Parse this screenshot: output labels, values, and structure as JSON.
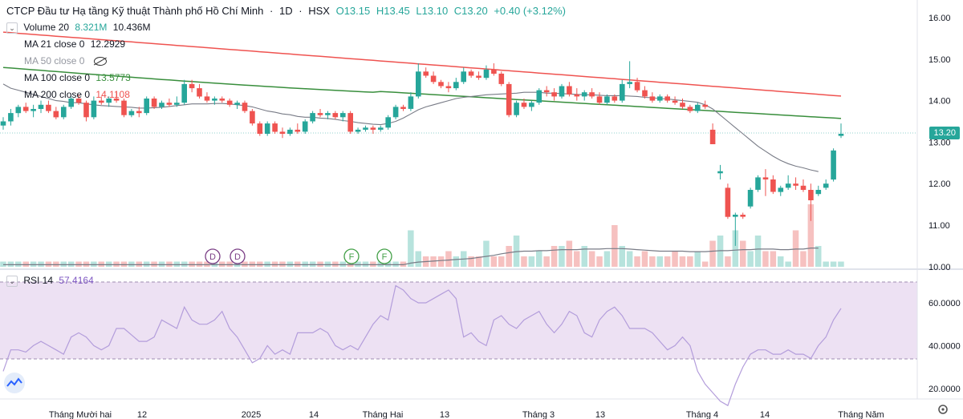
{
  "header": {
    "symbol_name": "CTCP Đầu tư Hạ tầng Kỹ thuật Thành phố Hồ Chí Minh",
    "interval": "1D",
    "exchange": "HSX",
    "open": "O13.15",
    "high": "H13.45",
    "low": "L13.10",
    "close": "C13.20",
    "change": "+0.40 (+3.12%)"
  },
  "legend": {
    "volume_label": "Volume 20",
    "volume_value": "8.321M",
    "volume_ma_value": "10.436M",
    "ma21_label": "MA 21 close 0",
    "ma21_value": "12.2929",
    "ma50_label": "MA 50 close 0",
    "ma100_label": "MA 100 close 0",
    "ma100_value": "13.5773",
    "ma200_label": "MA 200 close 0",
    "ma200_value": "14.1108",
    "rsi_label": "RSI 14",
    "rsi_value": "57.4164"
  },
  "price_axis": [
    "16.00",
    "15.00",
    "14.00",
    "13.00",
    "12.00",
    "11.00",
    "10.00"
  ],
  "price_last": "13.20",
  "rsi_axis": [
    "60.0000",
    "40.0000",
    "20.0000"
  ],
  "time_axis": [
    "Tháng Mười hai",
    "12",
    "2025",
    "14",
    "Tháng Hai",
    "13",
    "Tháng 3",
    "13",
    "Tháng 4",
    "14",
    "Tháng Năm"
  ],
  "event_markers": [
    "D",
    "D",
    "F",
    "F"
  ],
  "colors": {
    "up": "#26a69a",
    "down": "#ef5350",
    "ma21": "#787b86",
    "ma100": "#388e3c",
    "ma200": "#ef5350",
    "rsi": "#b39ddb"
  },
  "chart_data": {
    "type": "candlestick",
    "price_range": [
      10.0,
      16.0
    ],
    "rsi_range": [
      10,
      70
    ],
    "candles": [
      {
        "o": 13.4,
        "h": 13.6,
        "l": 13.3,
        "c": 13.5
      },
      {
        "o": 13.5,
        "h": 13.8,
        "l": 13.4,
        "c": 13.7
      },
      {
        "o": 13.7,
        "h": 13.9,
        "l": 13.6,
        "c": 13.85
      },
      {
        "o": 13.85,
        "h": 13.95,
        "l": 13.7,
        "c": 13.75
      },
      {
        "o": 13.75,
        "h": 13.9,
        "l": 13.6,
        "c": 13.8
      },
      {
        "o": 13.8,
        "h": 14.0,
        "l": 13.7,
        "c": 13.9
      },
      {
        "o": 13.9,
        "h": 14.0,
        "l": 13.7,
        "c": 13.75
      },
      {
        "o": 13.75,
        "h": 13.85,
        "l": 13.55,
        "c": 13.6
      },
      {
        "o": 13.6,
        "h": 13.9,
        "l": 13.55,
        "c": 13.85
      },
      {
        "o": 13.85,
        "h": 14.1,
        "l": 13.8,
        "c": 14.05
      },
      {
        "o": 14.05,
        "h": 14.15,
        "l": 13.9,
        "c": 13.95
      },
      {
        "o": 13.95,
        "h": 14.0,
        "l": 13.5,
        "c": 13.6
      },
      {
        "o": 13.6,
        "h": 14.1,
        "l": 13.55,
        "c": 14.0
      },
      {
        "o": 14.0,
        "h": 14.1,
        "l": 13.9,
        "c": 13.95
      },
      {
        "o": 13.95,
        "h": 14.1,
        "l": 13.85,
        "c": 14.05
      },
      {
        "o": 14.05,
        "h": 14.2,
        "l": 13.95,
        "c": 14.0
      },
      {
        "o": 14.0,
        "h": 14.05,
        "l": 13.6,
        "c": 13.65
      },
      {
        "o": 13.65,
        "h": 13.8,
        "l": 13.6,
        "c": 13.75
      },
      {
        "o": 13.75,
        "h": 13.85,
        "l": 13.6,
        "c": 13.7
      },
      {
        "o": 13.7,
        "h": 14.1,
        "l": 13.65,
        "c": 14.05
      },
      {
        "o": 14.05,
        "h": 14.1,
        "l": 13.8,
        "c": 13.85
      },
      {
        "o": 13.85,
        "h": 14.0,
        "l": 13.8,
        "c": 13.95
      },
      {
        "o": 13.95,
        "h": 14.05,
        "l": 13.85,
        "c": 13.9
      },
      {
        "o": 13.9,
        "h": 14.1,
        "l": 13.85,
        "c": 13.95
      },
      {
        "o": 13.95,
        "h": 14.5,
        "l": 13.9,
        "c": 14.4
      },
      {
        "o": 14.4,
        "h": 14.5,
        "l": 14.2,
        "c": 14.3
      },
      {
        "o": 14.3,
        "h": 14.4,
        "l": 14.05,
        "c": 14.1
      },
      {
        "o": 14.1,
        "h": 14.2,
        "l": 13.95,
        "c": 14.0
      },
      {
        "o": 14.0,
        "h": 14.1,
        "l": 13.9,
        "c": 14.05
      },
      {
        "o": 14.05,
        "h": 14.1,
        "l": 13.95,
        "c": 14.0
      },
      {
        "o": 14.0,
        "h": 14.05,
        "l": 13.85,
        "c": 13.9
      },
      {
        "o": 13.9,
        "h": 14.0,
        "l": 13.8,
        "c": 13.95
      },
      {
        "o": 13.95,
        "h": 14.0,
        "l": 13.7,
        "c": 13.75
      },
      {
        "o": 13.75,
        "h": 13.8,
        "l": 13.4,
        "c": 13.45
      },
      {
        "o": 13.45,
        "h": 13.5,
        "l": 13.15,
        "c": 13.2
      },
      {
        "o": 13.2,
        "h": 13.5,
        "l": 13.15,
        "c": 13.45
      },
      {
        "o": 13.45,
        "h": 13.5,
        "l": 13.2,
        "c": 13.25
      },
      {
        "o": 13.25,
        "h": 13.35,
        "l": 13.1,
        "c": 13.2
      },
      {
        "o": 13.2,
        "h": 13.35,
        "l": 13.15,
        "c": 13.3
      },
      {
        "o": 13.3,
        "h": 13.45,
        "l": 13.2,
        "c": 13.25
      },
      {
        "o": 13.25,
        "h": 13.55,
        "l": 13.2,
        "c": 13.5
      },
      {
        "o": 13.5,
        "h": 13.75,
        "l": 13.45,
        "c": 13.7
      },
      {
        "o": 13.7,
        "h": 13.8,
        "l": 13.6,
        "c": 13.65
      },
      {
        "o": 13.65,
        "h": 13.75,
        "l": 13.55,
        "c": 13.7
      },
      {
        "o": 13.7,
        "h": 13.75,
        "l": 13.55,
        "c": 13.6
      },
      {
        "o": 13.6,
        "h": 13.75,
        "l": 13.5,
        "c": 13.7
      },
      {
        "o": 13.7,
        "h": 13.75,
        "l": 13.2,
        "c": 13.25
      },
      {
        "o": 13.25,
        "h": 13.35,
        "l": 13.2,
        "c": 13.3
      },
      {
        "o": 13.3,
        "h": 13.4,
        "l": 13.25,
        "c": 13.35
      },
      {
        "o": 13.35,
        "h": 13.4,
        "l": 13.2,
        "c": 13.3
      },
      {
        "o": 13.3,
        "h": 13.4,
        "l": 13.25,
        "c": 13.35
      },
      {
        "o": 13.35,
        "h": 13.65,
        "l": 13.3,
        "c": 13.6
      },
      {
        "o": 13.6,
        "h": 13.9,
        "l": 13.55,
        "c": 13.85
      },
      {
        "o": 13.85,
        "h": 13.9,
        "l": 13.75,
        "c": 13.8
      },
      {
        "o": 13.8,
        "h": 14.2,
        "l": 13.75,
        "c": 14.1
      },
      {
        "o": 14.1,
        "h": 14.9,
        "l": 14.05,
        "c": 14.7
      },
      {
        "o": 14.7,
        "h": 14.8,
        "l": 14.55,
        "c": 14.6
      },
      {
        "o": 14.6,
        "h": 14.7,
        "l": 14.4,
        "c": 14.45
      },
      {
        "o": 14.45,
        "h": 14.5,
        "l": 14.3,
        "c": 14.35
      },
      {
        "o": 14.35,
        "h": 14.45,
        "l": 14.2,
        "c": 14.3
      },
      {
        "o": 14.3,
        "h": 14.55,
        "l": 14.25,
        "c": 14.45
      },
      {
        "o": 14.45,
        "h": 14.8,
        "l": 14.4,
        "c": 14.7
      },
      {
        "o": 14.7,
        "h": 14.75,
        "l": 14.55,
        "c": 14.6
      },
      {
        "o": 14.6,
        "h": 14.7,
        "l": 14.5,
        "c": 14.55
      },
      {
        "o": 14.55,
        "h": 14.85,
        "l": 14.5,
        "c": 14.75
      },
      {
        "o": 14.75,
        "h": 14.9,
        "l": 14.6,
        "c": 14.65
      },
      {
        "o": 14.65,
        "h": 14.7,
        "l": 14.35,
        "c": 14.4
      },
      {
        "o": 14.4,
        "h": 14.45,
        "l": 13.6,
        "c": 13.65
      },
      {
        "o": 13.65,
        "h": 14.0,
        "l": 13.6,
        "c": 13.95
      },
      {
        "o": 13.95,
        "h": 14.05,
        "l": 13.8,
        "c": 13.85
      },
      {
        "o": 13.85,
        "h": 14.0,
        "l": 13.75,
        "c": 13.95
      },
      {
        "o": 13.95,
        "h": 14.3,
        "l": 13.9,
        "c": 14.25
      },
      {
        "o": 14.25,
        "h": 14.35,
        "l": 14.1,
        "c": 14.2
      },
      {
        "o": 14.2,
        "h": 14.3,
        "l": 14.0,
        "c": 14.1
      },
      {
        "o": 14.1,
        "h": 14.4,
        "l": 14.05,
        "c": 14.35
      },
      {
        "o": 14.35,
        "h": 14.45,
        "l": 14.1,
        "c": 14.15
      },
      {
        "o": 14.15,
        "h": 14.3,
        "l": 14.0,
        "c": 14.1
      },
      {
        "o": 14.1,
        "h": 14.25,
        "l": 14.0,
        "c": 14.2
      },
      {
        "o": 14.2,
        "h": 14.3,
        "l": 14.05,
        "c": 14.1
      },
      {
        "o": 14.1,
        "h": 14.2,
        "l": 13.9,
        "c": 13.95
      },
      {
        "o": 13.95,
        "h": 14.15,
        "l": 13.9,
        "c": 14.1
      },
      {
        "o": 14.1,
        "h": 14.15,
        "l": 13.95,
        "c": 14.0
      },
      {
        "o": 14.0,
        "h": 14.5,
        "l": 13.95,
        "c": 14.4
      },
      {
        "o": 14.4,
        "h": 14.95,
        "l": 14.3,
        "c": 14.45
      },
      {
        "o": 14.45,
        "h": 14.55,
        "l": 14.2,
        "c": 14.25
      },
      {
        "o": 14.25,
        "h": 14.35,
        "l": 14.05,
        "c": 14.1
      },
      {
        "o": 14.1,
        "h": 14.2,
        "l": 13.95,
        "c": 14.0
      },
      {
        "o": 14.0,
        "h": 14.15,
        "l": 13.95,
        "c": 14.1
      },
      {
        "o": 14.1,
        "h": 14.15,
        "l": 13.95,
        "c": 14.0
      },
      {
        "o": 14.0,
        "h": 14.1,
        "l": 13.9,
        "c": 13.95
      },
      {
        "o": 13.95,
        "h": 14.05,
        "l": 13.8,
        "c": 13.85
      },
      {
        "o": 13.85,
        "h": 13.9,
        "l": 13.7,
        "c": 13.75
      },
      {
        "o": 13.75,
        "h": 13.95,
        "l": 13.7,
        "c": 13.9
      },
      {
        "o": 13.9,
        "h": 14.0,
        "l": 13.8,
        "c": 13.85
      },
      {
        "o": 13.3,
        "h": 13.45,
        "l": 12.95,
        "c": 12.95
      },
      {
        "o": 12.25,
        "h": 12.45,
        "l": 12.1,
        "c": 12.3
      },
      {
        "o": 11.9,
        "h": 12.0,
        "l": 11.15,
        "c": 11.2
      },
      {
        "o": 11.2,
        "h": 11.3,
        "l": 10.5,
        "c": 11.25
      },
      {
        "o": 11.25,
        "h": 11.3,
        "l": 11.15,
        "c": 11.2
      },
      {
        "o": 11.45,
        "h": 11.9,
        "l": 11.4,
        "c": 11.85
      },
      {
        "o": 11.85,
        "h": 12.2,
        "l": 11.8,
        "c": 12.15
      },
      {
        "o": 12.15,
        "h": 12.35,
        "l": 11.7,
        "c": 12.1
      },
      {
        "o": 12.1,
        "h": 12.2,
        "l": 11.75,
        "c": 11.8
      },
      {
        "o": 11.8,
        "h": 11.95,
        "l": 11.7,
        "c": 11.9
      },
      {
        "o": 11.9,
        "h": 12.2,
        "l": 11.85,
        "c": 12.0
      },
      {
        "o": 12.0,
        "h": 12.15,
        "l": 11.85,
        "c": 11.95
      },
      {
        "o": 11.95,
        "h": 12.1,
        "l": 11.8,
        "c": 11.85
      },
      {
        "o": 11.85,
        "h": 12.0,
        "l": 11.1,
        "c": 11.6
      },
      {
        "o": 11.75,
        "h": 11.95,
        "l": 11.7,
        "c": 11.85
      },
      {
        "o": 11.9,
        "h": 12.1,
        "l": 11.85,
        "c": 12.0
      },
      {
        "o": 12.1,
        "h": 12.85,
        "l": 12.05,
        "c": 12.8
      },
      {
        "o": 13.15,
        "h": 13.45,
        "l": 13.1,
        "c": 13.2
      }
    ],
    "volume": [
      1,
      1,
      1,
      1,
      1,
      1,
      1,
      1,
      1,
      1,
      1,
      1,
      1,
      1,
      1,
      1,
      1,
      1,
      1,
      1,
      1,
      1,
      1,
      1,
      1,
      1,
      1,
      1,
      1,
      1,
      1,
      1,
      1,
      1,
      1,
      1,
      1,
      1,
      1,
      1,
      1,
      1,
      1,
      1,
      1,
      1,
      1,
      1,
      1,
      1,
      1,
      1,
      1,
      1,
      7,
      3,
      2,
      2,
      2,
      3,
      2,
      3,
      2,
      2,
      5,
      2,
      2,
      4,
      6,
      2,
      2,
      3,
      2,
      4,
      4,
      5,
      3,
      4,
      3,
      2,
      3,
      8,
      4,
      3,
      2,
      3,
      2,
      2,
      2,
      3,
      2,
      2,
      3,
      1,
      5,
      6,
      2,
      7,
      5,
      3,
      6,
      3,
      3,
      2,
      1,
      7,
      3,
      12,
      4
    ],
    "volume_ma": [
      0.4,
      0.4,
      0.4,
      0.4,
      0.4,
      0.4,
      0.4,
      0.4,
      0.4,
      0.4,
      0.4,
      0.4,
      0.4,
      0.4,
      0.4,
      0.4,
      0.4,
      0.4,
      0.4,
      0.4,
      0.4,
      0.4,
      0.4,
      0.4,
      0.4,
      0.4,
      0.4,
      0.4,
      0.4,
      0.4,
      0.4,
      0.4,
      0.4,
      0.4,
      0.4,
      0.4,
      0.4,
      0.4,
      0.4,
      0.4,
      0.4,
      0.4,
      0.4,
      0.4,
      0.4,
      0.4,
      0.4,
      0.4,
      0.4,
      0.4,
      0.4,
      0.4,
      0.4,
      0.4,
      0.7,
      0.9,
      1.0,
      1.1,
      1.2,
      1.3,
      1.4,
      1.5,
      1.6,
      1.8,
      2.0,
      2.2,
      2.5,
      2.7,
      2.9,
      3.0,
      3.0,
      3.1,
      3.1,
      3.2,
      3.3,
      3.3,
      3.3,
      3.4,
      3.4,
      3.4,
      3.5,
      3.5,
      3.5,
      3.4,
      3.3,
      3.2,
      3.1,
      3.0,
      3.0,
      3.0,
      3.0,
      2.9,
      2.9,
      2.9,
      3.0,
      3.1,
      3.1,
      3.2,
      3.3,
      3.3,
      3.4,
      3.4,
      3.4,
      3.3,
      3.3,
      3.4,
      3.4,
      3.6,
      3.6
    ],
    "rsi": [
      28,
      38,
      38,
      37,
      40,
      42,
      40,
      38,
      36,
      44,
      46,
      44,
      40,
      38,
      40,
      48,
      48,
      45,
      42,
      42,
      44,
      52,
      50,
      48,
      58,
      52,
      50,
      50,
      52,
      56,
      48,
      44,
      38,
      32,
      34,
      40,
      36,
      38,
      36,
      46,
      46,
      46,
      48,
      46,
      40,
      38,
      40,
      38,
      44,
      50,
      54,
      52,
      68,
      66,
      62,
      60,
      60,
      62,
      64,
      66,
      62,
      44,
      46,
      42,
      40,
      52,
      54,
      50,
      48,
      52,
      54,
      56,
      50,
      46,
      50,
      56,
      54,
      46,
      44,
      52,
      56,
      58,
      54,
      48,
      48,
      48,
      46,
      42,
      38,
      40,
      44,
      40,
      28,
      22,
      18,
      14,
      12,
      22,
      30,
      36,
      38,
      38,
      36,
      36,
      38,
      36,
      36,
      34,
      40,
      44,
      52,
      57.4
    ],
    "ma21": [
      14.4,
      14.3,
      14.25,
      14.2,
      14.15,
      14.1,
      14.05,
      14.0,
      13.98,
      13.95,
      13.95,
      13.92,
      13.9,
      13.88,
      13.87,
      13.86,
      13.85,
      13.84,
      13.82,
      13.82,
      13.83,
      13.84,
      13.86,
      13.88,
      13.9,
      13.92,
      13.92,
      13.92,
      13.93,
      13.93,
      13.92,
      13.9,
      13.88,
      13.85,
      13.8,
      13.75,
      13.72,
      13.68,
      13.66,
      13.62,
      13.6,
      13.6,
      13.58,
      13.57,
      13.55,
      13.52,
      13.5,
      13.47,
      13.45,
      13.43,
      13.42,
      13.45,
      13.5,
      13.58,
      13.68,
      13.78,
      13.85,
      13.9,
      13.95,
      14.0,
      14.05,
      14.08,
      14.1,
      14.12,
      14.14,
      14.15,
      14.16,
      14.17,
      14.18,
      14.2,
      14.2,
      14.2,
      14.18,
      14.18,
      14.17,
      14.16,
      14.15,
      14.14,
      14.14,
      14.13,
      14.12,
      14.12,
      14.12,
      14.11,
      14.1,
      14.08,
      14.07,
      14.05,
      14.04,
      14.02,
      14.0,
      13.98,
      13.96,
      13.9,
      13.8,
      13.65,
      13.5,
      13.35,
      13.2,
      13.05,
      12.9,
      12.78,
      12.66,
      12.56,
      12.48,
      12.42,
      12.38,
      12.33,
      12.29
    ]
  }
}
